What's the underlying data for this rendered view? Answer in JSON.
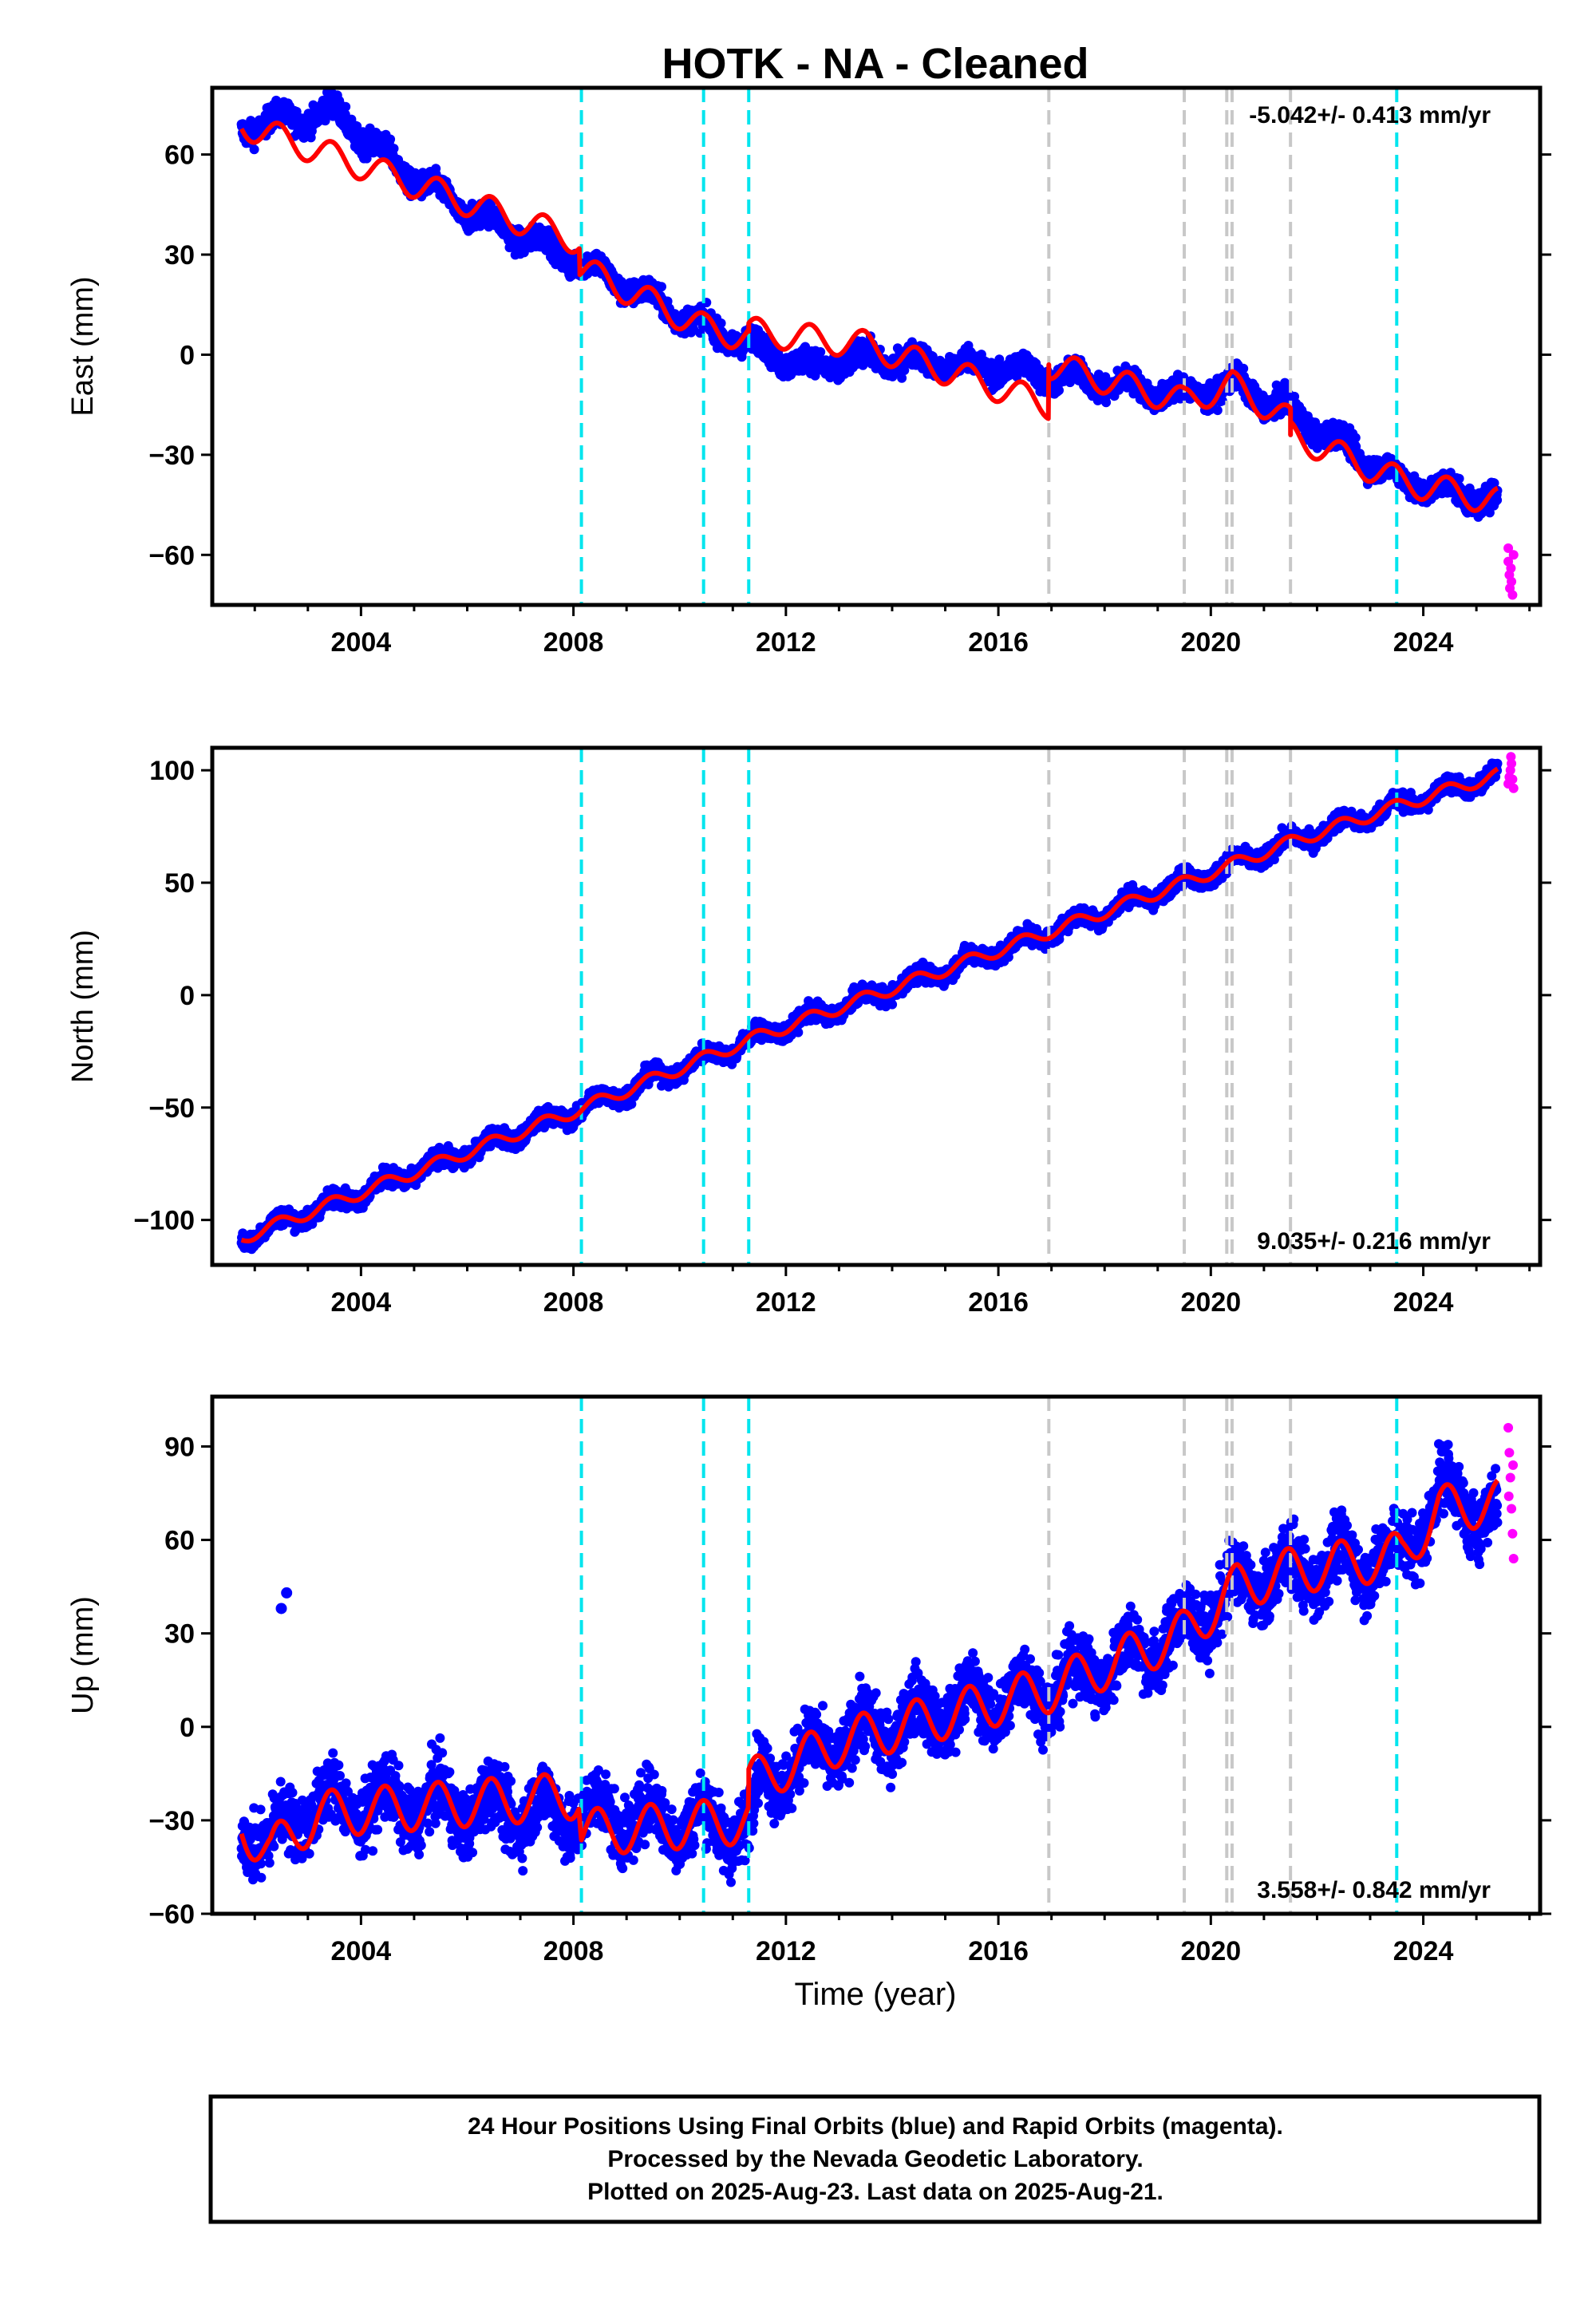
{
  "title": "HOTK  - NA - Cleaned",
  "xlabel": "Time (year)",
  "footer": {
    "line1": "24 Hour Positions Using Final Orbits (blue) and Rapid Orbits (magenta).",
    "line2": "Processed by the Nevada Geodetic Laboratory.",
    "line3": "Plotted on 2025-Aug-23. Last data on 2025-Aug-21."
  },
  "colors": {
    "final": "#0000ff",
    "rapid": "#ff00ff",
    "model": "#ff0000",
    "equipment_change": "#00e5ee",
    "earthquake": "#c8c8c8"
  },
  "chart_data": [
    {
      "type": "scatter",
      "ylabel": "East (mm)",
      "rate_text": "-5.042+/- 0.413 mm/yr",
      "xlim": [
        2001.2,
        2026.2
      ],
      "ylim": [
        -75,
        80
      ],
      "yticks": [
        "60",
        "30",
        "0",
        "−30",
        "−60"
      ],
      "ytick_values": [
        60,
        30,
        0,
        -30,
        -60
      ],
      "xticks": [
        "2004",
        "2008",
        "2012",
        "2016",
        "2020",
        "2024"
      ],
      "xtick_values": [
        2004,
        2008,
        2012,
        2016,
        2020,
        2024
      ],
      "start": 2001.75,
      "end": 2025.4,
      "trend": [
        [
          2001.75,
          68
        ],
        [
          2003.5,
          73
        ],
        [
          2004.8,
          55
        ],
        [
          2006.0,
          43
        ],
        [
          2008.1,
          28
        ],
        [
          2010.5,
          8
        ],
        [
          2011.3,
          3
        ],
        [
          2012.5,
          -4
        ],
        [
          2013.5,
          -1
        ],
        [
          2016.0,
          -4
        ],
        [
          2019.5,
          -12
        ],
        [
          2020.5,
          -9
        ],
        [
          2021.5,
          -17
        ],
        [
          2023.6,
          -38
        ],
        [
          2025.4,
          -44
        ]
      ],
      "trend_noise": 2.6,
      "seasonal_amp": 2.5,
      "model": [
        [
          2001.75,
          69
        ],
        [
          2008.12,
          34
        ],
        [
          2008.12,
          26
        ],
        [
          2010.48,
          8
        ],
        [
          2011.3,
          5
        ],
        [
          2011.3,
          7
        ],
        [
          2013.5,
          3
        ],
        [
          2016.95,
          -15
        ],
        [
          2016.95,
          -3
        ],
        [
          2019.5,
          -14
        ],
        [
          2020.4,
          -9
        ],
        [
          2021.5,
          -20
        ],
        [
          2021.5,
          -24
        ],
        [
          2023.6,
          -38
        ],
        [
          2025.4,
          -44
        ]
      ],
      "model_amp": 4.2,
      "rapid": [
        [
          2025.6,
          -58
        ],
        [
          2025.6,
          -62
        ],
        [
          2025.62,
          -66
        ],
        [
          2025.63,
          -70
        ],
        [
          2025.65,
          -64
        ],
        [
          2025.66,
          -68
        ],
        [
          2025.68,
          -72
        ],
        [
          2025.7,
          -60
        ]
      ],
      "outliers": [],
      "equipment_changes": [
        2008.15,
        2010.45,
        2011.3,
        2023.5
      ],
      "earthquakes": [
        2016.95,
        2019.5,
        2020.3,
        2020.4,
        2021.5
      ]
    },
    {
      "type": "scatter",
      "ylabel": "North (mm)",
      "rate_text": "9.035+/- 0.216 mm/yr",
      "xlim": [
        2001.2,
        2026.2
      ],
      "ylim": [
        -120,
        110
      ],
      "yticks": [
        "100",
        "50",
        "0",
        "−50",
        "−100"
      ],
      "ytick_values": [
        100,
        50,
        0,
        -50,
        -100
      ],
      "xticks": [
        "2004",
        "2008",
        "2012",
        "2016",
        "2020",
        "2024"
      ],
      "xtick_values": [
        2004,
        2008,
        2012,
        2016,
        2020,
        2024
      ],
      "start": 2001.75,
      "end": 2025.4,
      "trend": [
        [
          2001.75,
          -108
        ],
        [
          2008.1,
          -51
        ],
        [
          2011.3,
          -20
        ],
        [
          2016.95,
          28
        ],
        [
          2019.5,
          50
        ],
        [
          2021.5,
          68
        ],
        [
          2023.5,
          84
        ],
        [
          2025.4,
          98
        ]
      ],
      "trend_noise": 2.8,
      "seasonal_amp": 3.0,
      "model": [
        [
          2001.75,
          -108
        ],
        [
          2008.1,
          -51
        ],
        [
          2011.3,
          -20
        ],
        [
          2016.95,
          28
        ],
        [
          2019.5,
          50
        ],
        [
          2021.5,
          68
        ],
        [
          2023.5,
          84
        ],
        [
          2025.4,
          98
        ]
      ],
      "model_amp": 2.8,
      "rapid": [
        [
          2025.6,
          94
        ],
        [
          2025.62,
          97
        ],
        [
          2025.64,
          100
        ],
        [
          2025.66,
          103
        ],
        [
          2025.68,
          96
        ],
        [
          2025.7,
          92
        ],
        [
          2025.65,
          106
        ]
      ],
      "outliers": [],
      "equipment_changes": [
        2008.15,
        2010.45,
        2011.3,
        2023.5
      ],
      "earthquakes": [
        2016.95,
        2019.5,
        2020.3,
        2020.4,
        2021.5
      ]
    },
    {
      "type": "scatter",
      "ylabel": "Up (mm)",
      "rate_text": "3.558+/- 0.842 mm/yr",
      "xlim": [
        2001.2,
        2026.2
      ],
      "ylim": [
        -60,
        106
      ],
      "yticks": [
        "90",
        "60",
        "30",
        "0",
        "−30",
        "−60"
      ],
      "ytick_values": [
        90,
        60,
        30,
        0,
        -30,
        -60
      ],
      "xticks": [
        "2004",
        "2008",
        "2012",
        "2016",
        "2020",
        "2024"
      ],
      "xtick_values": [
        2004,
        2008,
        2012,
        2016,
        2020,
        2024
      ],
      "start": 2001.75,
      "end": 2025.4,
      "trend": [
        [
          2001.75,
          -30
        ],
        [
          2002.3,
          -38
        ],
        [
          2003.0,
          -25
        ],
        [
          2005.0,
          -25
        ],
        [
          2008.1,
          -28
        ],
        [
          2011.3,
          -32
        ],
        [
          2011.5,
          -18
        ],
        [
          2013.0,
          -5
        ],
        [
          2015.0,
          5
        ],
        [
          2016.95,
          12
        ],
        [
          2019.5,
          30
        ],
        [
          2020.5,
          45
        ],
        [
          2021.5,
          50
        ],
        [
          2023.6,
          55
        ],
        [
          2024.3,
          75
        ],
        [
          2025.4,
          68
        ]
      ],
      "trend_noise": 7.5,
      "seasonal_amp": 6.5,
      "model": [
        [
          2001.75,
          -32
        ],
        [
          2002.3,
          -40
        ],
        [
          2003.2,
          -28
        ],
        [
          2008.1,
          -22
        ],
        [
          2008.15,
          -34
        ],
        [
          2011.3,
          -30
        ],
        [
          2011.3,
          -18
        ],
        [
          2013.0,
          -5
        ],
        [
          2016.95,
          12
        ],
        [
          2019.5,
          30
        ],
        [
          2020.5,
          45
        ],
        [
          2021.5,
          50
        ],
        [
          2023.6,
          55
        ],
        [
          2024.3,
          70
        ],
        [
          2025.4,
          72
        ]
      ],
      "model_amp": 7.5,
      "rapid": [
        [
          2025.6,
          96
        ],
        [
          2025.62,
          88
        ],
        [
          2025.64,
          80
        ],
        [
          2025.66,
          70
        ],
        [
          2025.68,
          62
        ],
        [
          2025.7,
          54
        ],
        [
          2025.61,
          74
        ],
        [
          2025.69,
          84
        ]
      ],
      "outliers": [
        [
          2002.5,
          38
        ],
        [
          2002.6,
          43
        ]
      ],
      "equipment_changes": [
        2008.15,
        2010.45,
        2011.3,
        2023.5
      ],
      "earthquakes": [
        2016.95,
        2019.5,
        2020.3,
        2020.4,
        2021.5
      ]
    }
  ]
}
